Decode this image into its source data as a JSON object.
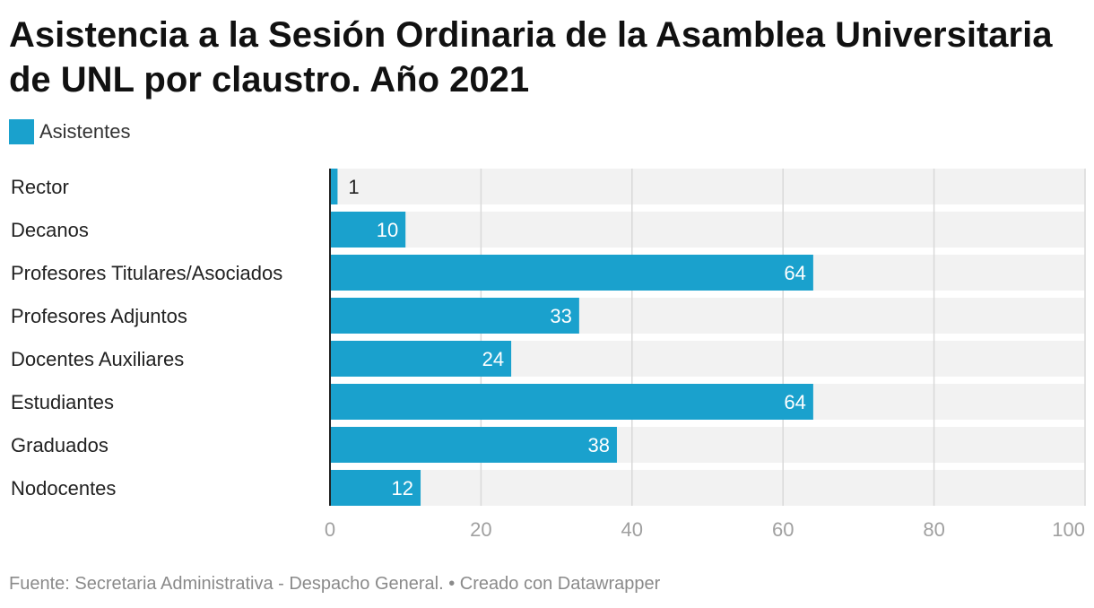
{
  "title": "Asistencia a la Sesión Ordinaria de la Asamblea Universitaria de UNL por claustro. Año 2021",
  "legend": {
    "label": "Asistentes",
    "color": "#1aa1cd"
  },
  "footer": {
    "source": "Fuente: Secretaria Administrativa - Despacho General. • Creado con Datawrapper"
  },
  "colors": {
    "bar": "#1aa1cd",
    "track": "#f2f2f2",
    "grid": "#d9d9d9",
    "axis": "#222222",
    "tick_label": "#a0a0a0",
    "label_inside": "#ffffff",
    "label_outside": "#222222"
  },
  "chart_data": {
    "type": "bar",
    "orientation": "horizontal",
    "categories": [
      "Rector",
      "Decanos",
      "Profesores Titulares/Asociados",
      "Profesores Adjuntos",
      "Docentes Auxiliares",
      "Estudiantes",
      "Graduados",
      "Nodocentes"
    ],
    "series": [
      {
        "name": "Asistentes",
        "values": [
          1,
          10,
          64,
          33,
          24,
          64,
          38,
          12
        ]
      }
    ],
    "xlim": [
      0,
      100
    ],
    "xticks": [
      0,
      20,
      40,
      60,
      80,
      100
    ],
    "grid": true,
    "legend_position": "top-left",
    "data_labels": true
  }
}
